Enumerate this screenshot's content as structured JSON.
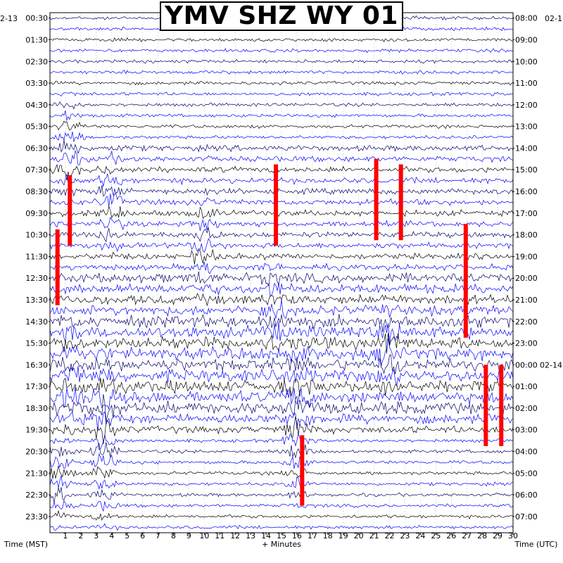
{
  "header": {
    "title": "YMV SHZ WY 01"
  },
  "dates": {
    "left_date": "2-13",
    "right_date": "02-1",
    "utc_date_mark": "02-14"
  },
  "axes": {
    "left_label": "Time (MST)",
    "right_label": "Time (UTC)",
    "bottom_label": "+ Minutes"
  },
  "colors": {
    "trace_dark": "#000066",
    "trace_blue": "#0000ff",
    "trace_black": "#000000",
    "clip": "#ff0000",
    "frame": "#000000",
    "grid": "#aaaaaa"
  },
  "chart_data": {
    "type": "line",
    "title": "YMV SHZ WY 01",
    "xlabel": "+ Minutes",
    "ylabel_left": "Time (MST)",
    "ylabel_right": "Time (UTC)",
    "xlim": [
      0,
      30
    ],
    "x_ticks": [
      "1",
      "2",
      "3",
      "4",
      "5",
      "6",
      "7",
      "8",
      "9",
      "10",
      "11",
      "12",
      "13",
      "14",
      "15",
      "16",
      "17",
      "18",
      "19",
      "20",
      "21",
      "22",
      "23",
      "24",
      "25",
      "26",
      "27",
      "28",
      "29",
      "30"
    ],
    "left_ticks": [
      "00:30",
      "01:30",
      "02:30",
      "03:30",
      "04:30",
      "05:30",
      "06:30",
      "07:30",
      "08:30",
      "09:30",
      "10:30",
      "11:30",
      "12:30",
      "13:30",
      "14:30",
      "15:30",
      "16:30",
      "17:30",
      "18:30",
      "19:30",
      "20:30",
      "21:30",
      "22:30",
      "23:30"
    ],
    "right_ticks": [
      "08:00",
      "09:00",
      "10:00",
      "11:00",
      "12:00",
      "13:00",
      "14:00",
      "15:00",
      "16:00",
      "17:00",
      "18:00",
      "19:00",
      "20:00",
      "21:00",
      "22:00",
      "23:00",
      "00:00",
      "01:00",
      "02:00",
      "03:00",
      "04:00",
      "05:00",
      "06:00",
      "07:00"
    ],
    "traces_per_hour": 2,
    "trace_color_cycle": [
      "dark-navy",
      "blue",
      "black",
      "blue"
    ],
    "grid": true
  }
}
